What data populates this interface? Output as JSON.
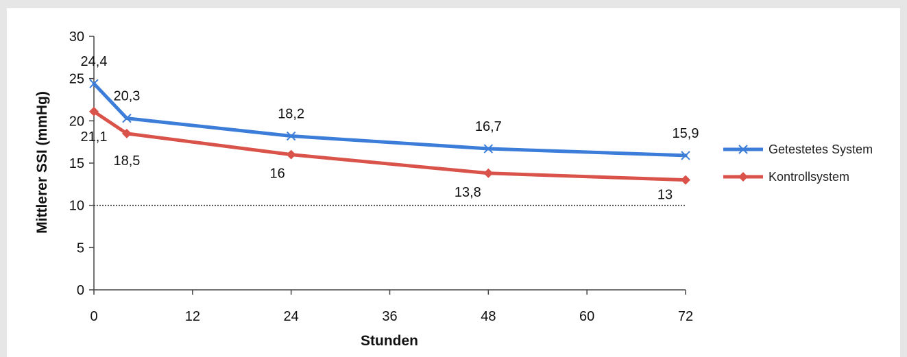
{
  "chart_data": {
    "type": "line",
    "xlabel": "Stunden",
    "ylabel": "Mittlerer SSI (mmHg)",
    "xlim": [
      0,
      72
    ],
    "ylim": [
      0,
      30
    ],
    "x_ticks": [
      "0",
      "12",
      "24",
      "36",
      "48",
      "60",
      "72"
    ],
    "y_ticks": [
      "0",
      "5",
      "10",
      "15",
      "20",
      "25",
      "30"
    ],
    "x": [
      0,
      4,
      24,
      48,
      72
    ],
    "series": [
      {
        "name": "Getestetes System",
        "values": [
          24.4,
          20.3,
          18.2,
          16.7,
          15.9
        ],
        "labels": [
          "24,4",
          "20,3",
          "18,2",
          "16,7",
          "15,9"
        ],
        "color": "#3b7dd8",
        "marker": "x"
      },
      {
        "name": "Kontrollsystem",
        "values": [
          21.1,
          18.5,
          16,
          13.8,
          13
        ],
        "labels": [
          "21,1",
          "18,5",
          "16",
          "13,8",
          "13"
        ],
        "color": "#d9534a",
        "marker": "diamond"
      }
    ],
    "reference_line": {
      "y": 10,
      "style": "dotted"
    },
    "legend_position": "right",
    "grid": false
  }
}
